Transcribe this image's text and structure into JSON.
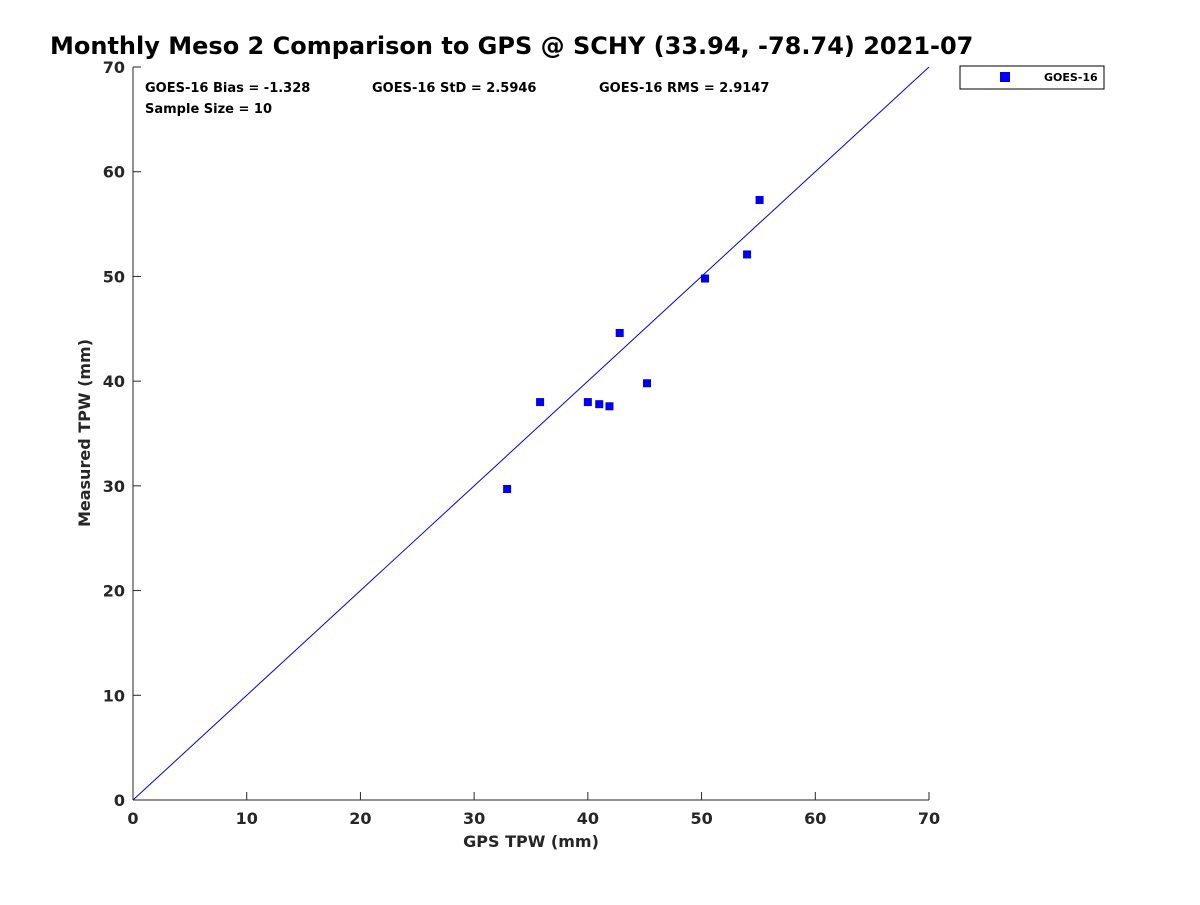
{
  "chart_data": {
    "type": "scatter",
    "title": "Monthly Meso 2 Comparison to GPS @ SCHY (33.94, -78.74) 2021-07",
    "xlabel": "GPS TPW (mm)",
    "ylabel": "Measured TPW (mm)",
    "xlim": [
      0,
      70
    ],
    "ylim": [
      0,
      70
    ],
    "xticks": [
      "0",
      "10",
      "20",
      "30",
      "40",
      "50",
      "60",
      "70"
    ],
    "yticks": [
      "0",
      "10",
      "20",
      "30",
      "40",
      "50",
      "60",
      "70"
    ],
    "grid": false,
    "legend_position": "outside-top-right",
    "colors": {
      "series": "#0000ee",
      "reference_line": "#0000ee",
      "axis": "#262626"
    },
    "reference_line": {
      "from": [
        0,
        0
      ],
      "to": [
        70,
        70
      ]
    },
    "stats": {
      "bias": "GOES-16 Bias = -1.328",
      "std": "GOES-16 StD = 2.5946",
      "rms": "GOES-16 RMS = 2.9147",
      "sample_size": "Sample Size = 10"
    },
    "series": [
      {
        "name": "GOES-16",
        "marker": "square",
        "points": [
          {
            "x": 32.9,
            "y": 29.7
          },
          {
            "x": 35.8,
            "y": 38.0
          },
          {
            "x": 40.0,
            "y": 38.0
          },
          {
            "x": 41.0,
            "y": 37.8
          },
          {
            "x": 41.9,
            "y": 37.6
          },
          {
            "x": 42.8,
            "y": 44.6
          },
          {
            "x": 45.2,
            "y": 39.8
          },
          {
            "x": 50.3,
            "y": 49.8
          },
          {
            "x": 54.0,
            "y": 52.1
          },
          {
            "x": 55.1,
            "y": 57.3
          }
        ]
      }
    ]
  }
}
